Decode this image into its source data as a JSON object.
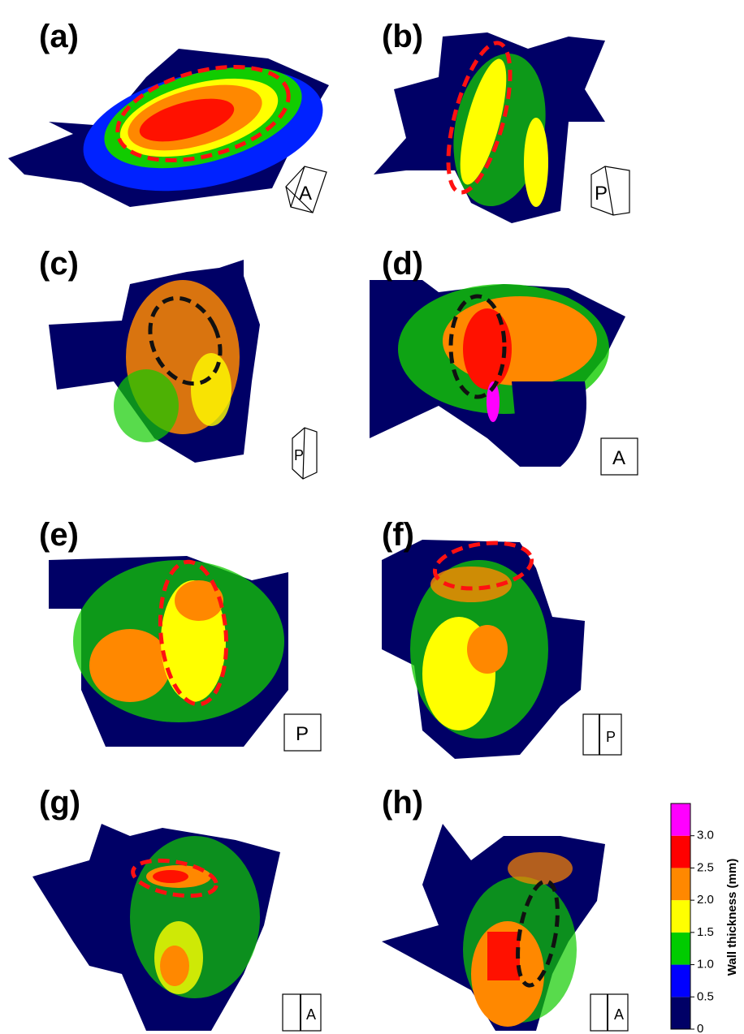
{
  "panels": [
    {
      "label": "(a)",
      "view": "A"
    },
    {
      "label": "(b)",
      "view": "P"
    },
    {
      "label": "(c)",
      "view": "P"
    },
    {
      "label": "(d)",
      "view": "A"
    },
    {
      "label": "(e)",
      "view": "P"
    },
    {
      "label": "(f)",
      "view": "P"
    },
    {
      "label": "(g)",
      "view": "A"
    },
    {
      "label": "(h)",
      "view": "A"
    }
  ],
  "colorbar": {
    "label": "Wall thickness (mm)",
    "lim": [
      0,
      3.5
    ],
    "ticks": [
      0,
      0.5,
      {
        "value": 1,
        "label": "1.0"
      },
      1.5,
      {
        "value": 2,
        "label": "2.0"
      },
      2.5,
      {
        "value": 3,
        "label": "3.0"
      }
    ],
    "colors": [
      "#000066",
      "#0000ff",
      "#00cc00",
      "#ffff00",
      "#ff8800",
      "#ff0000",
      "#ff00ff"
    ]
  }
}
